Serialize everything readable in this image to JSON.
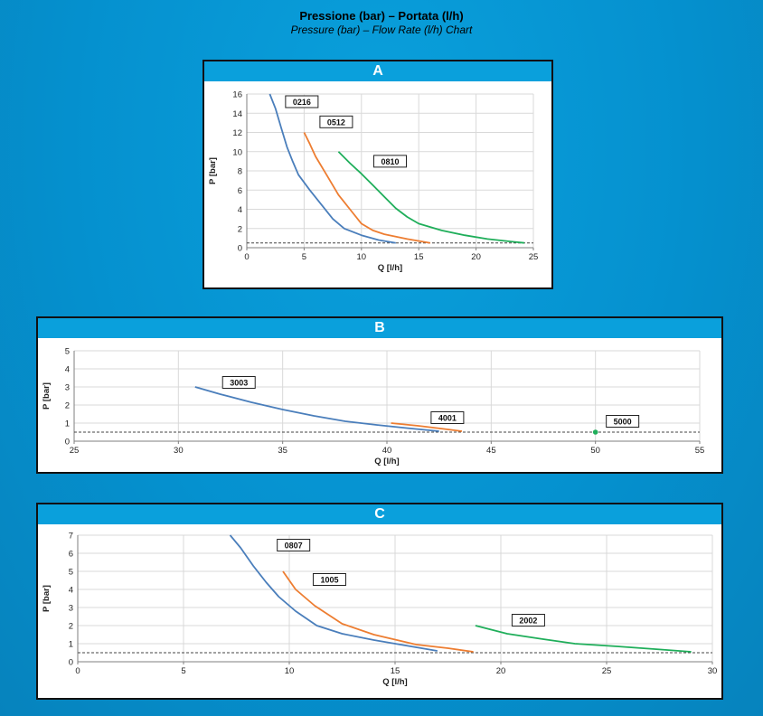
{
  "page": {
    "title": "Pressione (bar) – Portata (l/h)",
    "subtitle": "Pressure (bar) – Flow Rate (l/h) Chart"
  },
  "colors": {
    "blue": "#4a7ebb",
    "orange": "#ed7d31",
    "green": "#1fae5a",
    "header": "#0aa0dc"
  },
  "chart_data": [
    {
      "panel": "A",
      "type": "line",
      "xlabel": "Q [l/h]",
      "ylabel": "P [bar]",
      "xlim": [
        0,
        25
      ],
      "ylim": [
        0,
        16
      ],
      "xticks": [
        0,
        5,
        10,
        15,
        20,
        25
      ],
      "yticks": [
        0,
        2,
        4,
        6,
        8,
        10,
        12,
        14,
        16
      ],
      "grid": true,
      "reference_line": 0.5,
      "series": [
        {
          "name": "0216",
          "color": "#4a7ebb",
          "points": [
            [
              2.0,
              16
            ],
            [
              2.5,
              14.5
            ],
            [
              3.0,
              12.5
            ],
            [
              3.5,
              10.5
            ],
            [
              4.0,
              9
            ],
            [
              4.5,
              7.6
            ],
            [
              5.5,
              6
            ],
            [
              6.5,
              4.5
            ],
            [
              7.5,
              3
            ],
            [
              8.5,
              2
            ],
            [
              10,
              1.3
            ],
            [
              11.5,
              0.8
            ],
            [
              13,
              0.5
            ]
          ],
          "label_at": [
            4.8,
            15.2
          ]
        },
        {
          "name": "0512",
          "color": "#ed7d31",
          "points": [
            [
              5.0,
              12
            ],
            [
              5.5,
              10.8
            ],
            [
              6.0,
              9.5
            ],
            [
              7,
              7.5
            ],
            [
              8,
              5.5
            ],
            [
              9,
              4
            ],
            [
              10,
              2.5
            ],
            [
              11,
              1.8
            ],
            [
              12,
              1.4
            ],
            [
              14,
              0.9
            ],
            [
              16,
              0.5
            ]
          ],
          "label_at": [
            7.8,
            13.1
          ]
        },
        {
          "name": "0810",
          "color": "#1fae5a",
          "points": [
            [
              8.0,
              10
            ],
            [
              9,
              8.8
            ],
            [
              10,
              7.7
            ],
            [
              11,
              6.5
            ],
            [
              12,
              5.3
            ],
            [
              13,
              4.1
            ],
            [
              14,
              3.2
            ],
            [
              15,
              2.5
            ],
            [
              17,
              1.8
            ],
            [
              19,
              1.3
            ],
            [
              21,
              0.9
            ],
            [
              23,
              0.65
            ],
            [
              24.2,
              0.5
            ]
          ],
          "label_at": [
            12.5,
            9
          ]
        }
      ]
    },
    {
      "panel": "B",
      "type": "line",
      "xlabel": "Q [l/h]",
      "ylabel": "P [bar]",
      "xlim": [
        25,
        55
      ],
      "ylim": [
        0,
        5
      ],
      "xticks": [
        25,
        30,
        35,
        40,
        45,
        50,
        55
      ],
      "yticks": [
        0,
        1,
        2,
        3,
        4,
        5
      ],
      "grid": true,
      "reference_line": 0.5,
      "series": [
        {
          "name": "3003",
          "color": "#4a7ebb",
          "points": [
            [
              30.8,
              3.0
            ],
            [
              32,
              2.6
            ],
            [
              33.5,
              2.15
            ],
            [
              35,
              1.75
            ],
            [
              36.5,
              1.4
            ],
            [
              38,
              1.1
            ],
            [
              39.5,
              0.9
            ],
            [
              41,
              0.72
            ],
            [
              42.5,
              0.55
            ]
          ],
          "label_at": [
            32.9,
            3.25
          ]
        },
        {
          "name": "4001",
          "color": "#ed7d31",
          "points": [
            [
              40.2,
              1.0
            ],
            [
              41.5,
              0.85
            ],
            [
              42.7,
              0.68
            ],
            [
              43.6,
              0.55
            ]
          ],
          "label_at": [
            42.9,
            1.3
          ]
        },
        {
          "name": "5000",
          "color": "#1fae5a",
          "points": [
            [
              50,
              0.5
            ]
          ],
          "label_at": [
            51.3,
            1.1
          ]
        }
      ]
    },
    {
      "panel": "C",
      "type": "line",
      "xlabel": "Q [l/h]",
      "ylabel": "P [bar]",
      "xlim": [
        0,
        30
      ],
      "ylim": [
        0,
        7
      ],
      "xticks": [
        0,
        5,
        10,
        15,
        20,
        25,
        30
      ],
      "yticks": [
        0,
        1,
        2,
        3,
        4,
        5,
        6,
        7
      ],
      "grid": true,
      "reference_line": 0.5,
      "series": [
        {
          "name": "0807",
          "color": "#4a7ebb",
          "points": [
            [
              7.2,
              7
            ],
            [
              7.7,
              6.3
            ],
            [
              8.3,
              5.3
            ],
            [
              8.9,
              4.4
            ],
            [
              9.5,
              3.6
            ],
            [
              10.3,
              2.8
            ],
            [
              11.3,
              2.0
            ],
            [
              12.5,
              1.55
            ],
            [
              14,
              1.2
            ],
            [
              15.5,
              0.9
            ],
            [
              17,
              0.6
            ]
          ],
          "label_at": [
            10.2,
            6.45
          ]
        },
        {
          "name": "1005",
          "color": "#ed7d31",
          "points": [
            [
              9.7,
              5.0
            ],
            [
              10.3,
              4.0
            ],
            [
              11.2,
              3.1
            ],
            [
              12.5,
              2.1
            ],
            [
              14,
              1.5
            ],
            [
              16,
              0.95
            ],
            [
              17.5,
              0.75
            ],
            [
              18.7,
              0.55
            ]
          ],
          "label_at": [
            11.9,
            4.55
          ]
        },
        {
          "name": "2002",
          "color": "#1fae5a",
          "points": [
            [
              18.8,
              2.0
            ],
            [
              20.3,
              1.55
            ],
            [
              22,
              1.25
            ],
            [
              23.5,
              1.0
            ],
            [
              25.5,
              0.85
            ],
            [
              27.5,
              0.68
            ],
            [
              29,
              0.55
            ]
          ],
          "label_at": [
            21.3,
            2.3
          ]
        }
      ]
    }
  ]
}
